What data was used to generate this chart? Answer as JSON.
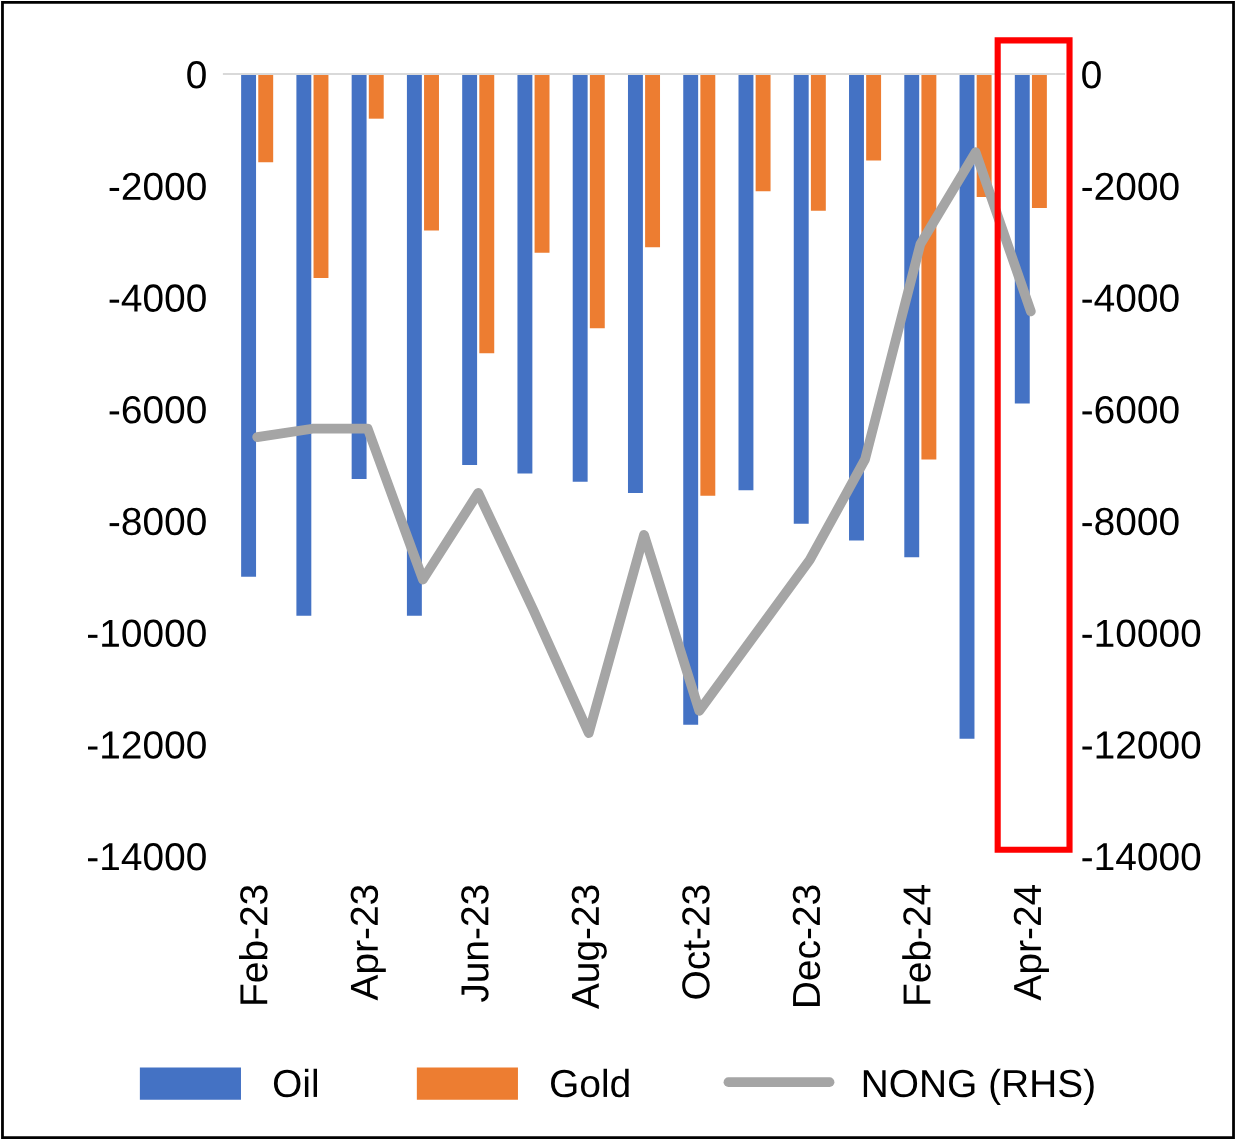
{
  "chart_data": {
    "type": "bar",
    "categories": [
      "Feb-23",
      null,
      "Apr-23",
      null,
      "Jun-23",
      null,
      "Aug-23",
      null,
      "Oct-23",
      null,
      "Dec-23",
      null,
      "Feb-24",
      null,
      "Apr-24"
    ],
    "series": [
      {
        "name": "Oil",
        "color": "#4472c4",
        "values": [
          -9000,
          -9700,
          -7250,
          -9700,
          -7000,
          -7150,
          -7300,
          -7500,
          -11650,
          -7450,
          -8050,
          -8350,
          -8650,
          -11900,
          -5900
        ]
      },
      {
        "name": "Gold",
        "color": "#ed7d31",
        "values": [
          -1580,
          -3650,
          -800,
          -2800,
          -5000,
          -3200,
          -4550,
          -3100,
          -7550,
          -2100,
          -2450,
          -1550,
          -6900,
          -2200,
          -2400
        ]
      },
      {
        "name": "NONG (RHS)",
        "type": "line",
        "axis": "y2",
        "color": "#a5a5a5",
        "values": [
          -6500,
          -6350,
          -6350,
          -9050,
          -7500,
          -9600,
          -11800,
          -8250,
          -11400,
          -10050,
          -8700,
          -6900,
          -3050,
          -1400,
          -4250
        ]
      }
    ],
    "ylim": [
      -14000,
      0
    ],
    "yticks": [
      -14000,
      -12000,
      -10000,
      -8000,
      -6000,
      -4000,
      -2000,
      0
    ],
    "y2lim": [
      -14000,
      0
    ],
    "y2ticks": [
      -14000,
      -12000,
      -10000,
      -8000,
      -6000,
      -4000,
      -2000,
      0
    ],
    "grid": false,
    "legend": "bottom"
  }
}
